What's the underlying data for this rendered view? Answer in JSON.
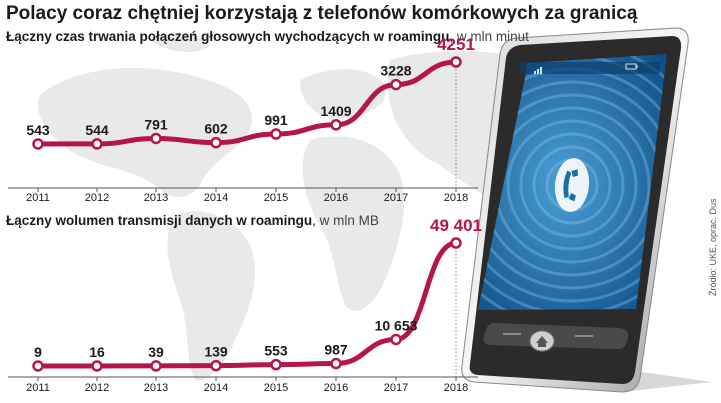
{
  "title": "Polacy coraz chętniej korzystają z telefonów komórkowych za granicą",
  "source": "Źródło: UKE, oprac. Dus",
  "colors": {
    "line": "#b5144d",
    "highlight": "#b5144d",
    "text": "#1a1a1a",
    "map": "#e9e9ea",
    "axis": "#555555"
  },
  "chart_data": [
    {
      "type": "line",
      "title": "Łączny czas trwania połączeń głosowych wychodzących w roamingu",
      "unit": "w mln minut",
      "x": [
        "2011",
        "2012",
        "2013",
        "2014",
        "2015",
        "2016",
        "2017",
        "2018"
      ],
      "labels": [
        "543",
        "544",
        "791",
        "602",
        "991",
        "1409",
        "3228",
        "4251"
      ],
      "values": [
        543,
        544,
        791,
        602,
        991,
        1409,
        3228,
        4251
      ],
      "highlight_index": 7,
      "grid": false,
      "legend": "none"
    },
    {
      "type": "line",
      "title": "Łączny wolumen transmisji danych w roamingu",
      "unit": "w mln MB",
      "x": [
        "2011",
        "2012",
        "2013",
        "2014",
        "2015",
        "2016",
        "2017",
        "2018"
      ],
      "labels": [
        "9",
        "16",
        "39",
        "139",
        "553",
        "987",
        "10 653",
        "49 401"
      ],
      "values": [
        9,
        16,
        39,
        139,
        553,
        987,
        10653,
        49401
      ],
      "highlight_index": 7,
      "grid": false,
      "legend": "none"
    }
  ],
  "phone": {
    "icon": "phone-handset-icon",
    "status_icons": [
      "signal-icon",
      "battery-icon"
    ],
    "home_button": "home-icon"
  }
}
